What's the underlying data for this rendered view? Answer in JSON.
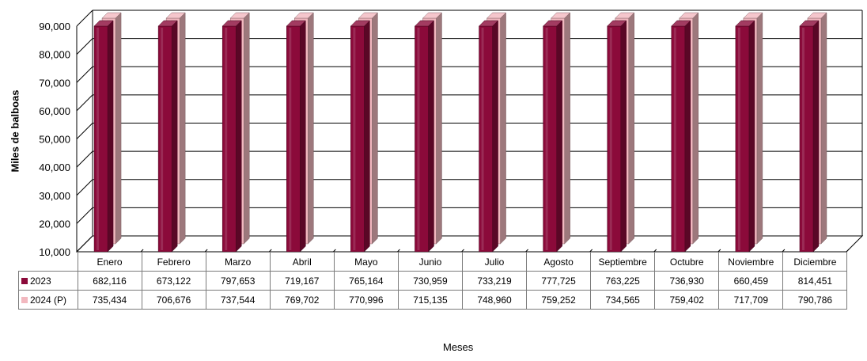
{
  "chart_data": {
    "type": "bar",
    "title": "",
    "xlabel": "Meses",
    "ylabel": "Miles de balboas",
    "ylim": [
      10000,
      90000
    ],
    "yticks": [
      "10,000",
      "20,000",
      "30,000",
      "40,000",
      "50,000",
      "60,000",
      "70,000",
      "80,000",
      "90,000"
    ],
    "grid": true,
    "categories": [
      "Enero",
      "Febrero",
      "Marzo",
      "Abril",
      "Mayo",
      "Junio",
      "Julio",
      "Agosto",
      "Septiembre",
      "Octubre",
      "Noviembre",
      "Diciembre"
    ],
    "series": [
      {
        "name": "2023",
        "color": "#8b0a3a",
        "values": [
          682116,
          673122,
          797653,
          719167,
          765164,
          730959,
          733219,
          777725,
          763225,
          736930,
          660459,
          814451
        ],
        "labels": [
          "682,116",
          "673,122",
          "797,653",
          "719,167",
          "765,164",
          "730,959",
          "733,219",
          "777,725",
          "763,225",
          "736,930",
          "660,459",
          "814,451"
        ]
      },
      {
        "name": "2024 (P)",
        "color": "#f2b8bf",
        "values": [
          735434,
          706676,
          737544,
          769702,
          770996,
          715135,
          748960,
          759252,
          734565,
          759402,
          717709,
          790786
        ],
        "labels": [
          "735,434",
          "706,676",
          "737,544",
          "769,702",
          "770,996",
          "715,135",
          "748,960",
          "759,252",
          "734,565",
          "759,402",
          "717,709",
          "790,786"
        ]
      }
    ]
  }
}
